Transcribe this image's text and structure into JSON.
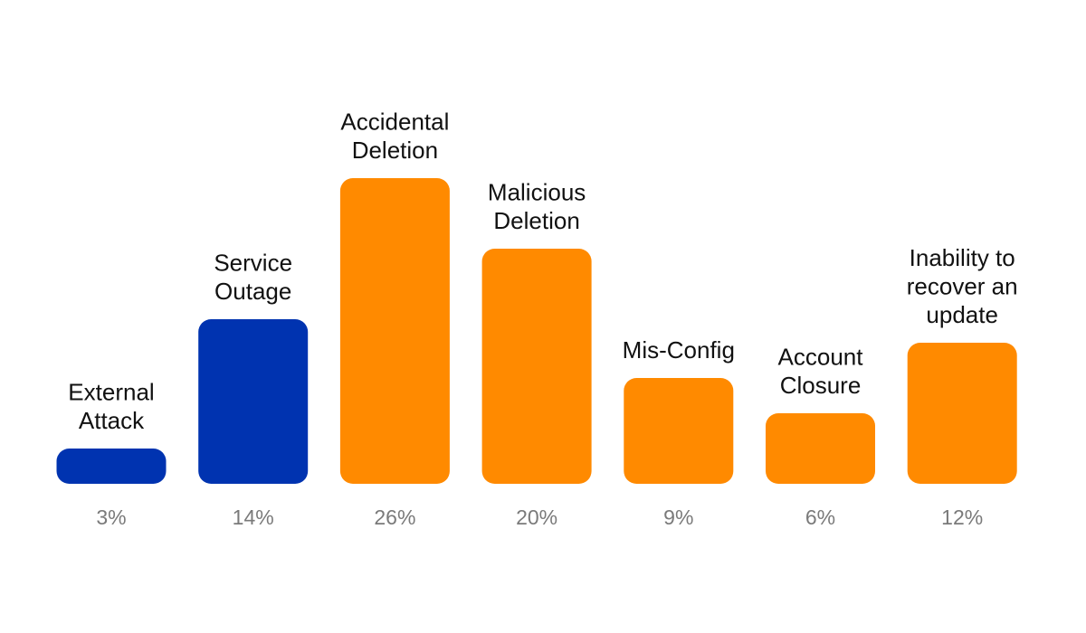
{
  "chart_data": {
    "type": "bar",
    "categories": [
      "External Attack",
      "Service Outage",
      "Accidental Deletion",
      "Malicious Deletion",
      "Mis-Config",
      "Account Closure",
      "Inability to recover an update"
    ],
    "category_label_lines": [
      [
        "External",
        "Attack"
      ],
      [
        "Service",
        "Outage"
      ],
      [
        "Accidental",
        "Deletion"
      ],
      [
        "Malicious",
        "Deletion"
      ],
      [
        "Mis-Config"
      ],
      [
        "Account",
        "Closure"
      ],
      [
        "Inability to",
        "recover an",
        "update"
      ]
    ],
    "values": [
      3,
      14,
      26,
      20,
      9,
      6,
      12
    ],
    "value_labels": [
      "3%",
      "14%",
      "26%",
      "20%",
      "9%",
      "6%",
      "12%"
    ],
    "bar_colors": [
      "#0033b0",
      "#0033b0",
      "#ff8a00",
      "#ff8a00",
      "#ff8a00",
      "#ff8a00",
      "#ff8a00"
    ],
    "title": "",
    "xlabel": "",
    "ylabel": "",
    "ylim": [
      0,
      26
    ],
    "grid": false,
    "legend": "none"
  }
}
